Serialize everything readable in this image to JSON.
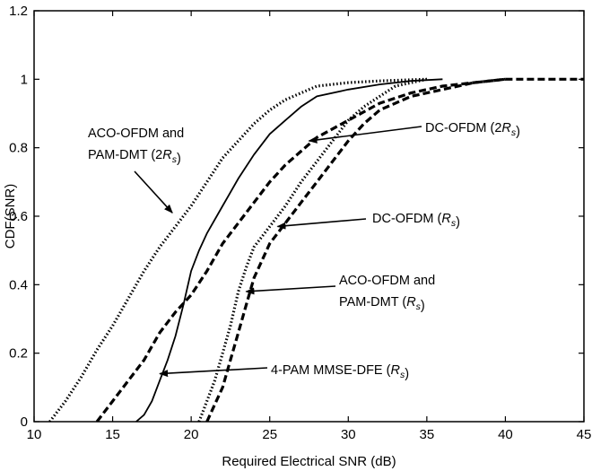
{
  "chart_data": {
    "type": "line",
    "title": "",
    "xlabel": "Required Electrical SNR (dB)",
    "ylabel": "CDF(SNR)",
    "xlim": [
      10,
      45
    ],
    "ylim": [
      0,
      1.2
    ],
    "xticks": [
      "10",
      "15",
      "20",
      "25",
      "30",
      "35",
      "40",
      "45"
    ],
    "yticks": [
      "0",
      "0.2",
      "0.4",
      "0.6",
      "0.8",
      "1",
      "1.2"
    ],
    "grid": false,
    "legend": "none",
    "series": [
      {
        "style": "dotted",
        "x": [
          11,
          12,
          13,
          14,
          15,
          16,
          17,
          18,
          19,
          20,
          21,
          22,
          23,
          24,
          25,
          26,
          27,
          28,
          30,
          32,
          35
        ],
        "y": [
          0,
          0.06,
          0.13,
          0.21,
          0.28,
          0.36,
          0.44,
          0.51,
          0.57,
          0.63,
          0.7,
          0.77,
          0.82,
          0.87,
          0.91,
          0.94,
          0.96,
          0.98,
          0.99,
          0.995,
          1.0
        ]
      },
      {
        "style": "solid",
        "x": [
          16.5,
          17,
          17.5,
          18,
          18.5,
          19,
          19.5,
          20,
          20.5,
          21,
          22,
          23,
          24,
          25,
          26,
          27,
          28,
          30,
          32,
          34,
          36
        ],
        "y": [
          0,
          0.02,
          0.06,
          0.12,
          0.18,
          0.25,
          0.34,
          0.44,
          0.5,
          0.55,
          0.63,
          0.71,
          0.78,
          0.84,
          0.88,
          0.92,
          0.95,
          0.97,
          0.985,
          0.995,
          1.0
        ]
      },
      {
        "style": "dashed",
        "x": [
          14,
          15,
          16,
          17,
          18,
          19,
          20,
          21,
          22,
          23,
          24,
          25,
          26,
          27,
          28,
          30,
          32,
          34,
          36,
          38,
          40
        ],
        "y": [
          0,
          0.06,
          0.12,
          0.18,
          0.26,
          0.32,
          0.37,
          0.44,
          0.52,
          0.58,
          0.64,
          0.7,
          0.75,
          0.79,
          0.83,
          0.88,
          0.93,
          0.96,
          0.98,
          0.99,
          1.0
        ]
      },
      {
        "style": "dotted",
        "x": [
          20.5,
          21,
          21.5,
          22,
          22.5,
          23,
          23.5,
          24,
          25,
          26,
          27,
          28,
          29,
          30,
          31,
          32,
          33,
          35
        ],
        "y": [
          0,
          0.06,
          0.12,
          0.2,
          0.28,
          0.38,
          0.45,
          0.51,
          0.57,
          0.63,
          0.7,
          0.76,
          0.82,
          0.88,
          0.92,
          0.95,
          0.98,
          1.0
        ]
      },
      {
        "style": "dashed",
        "x": [
          21,
          21.5,
          22,
          22.5,
          23,
          23.5,
          24,
          24.5,
          25,
          26,
          27,
          28,
          29,
          30,
          31,
          32,
          34,
          36,
          38,
          40
        ],
        "y": [
          0,
          0.05,
          0.1,
          0.18,
          0.26,
          0.34,
          0.42,
          0.47,
          0.52,
          0.58,
          0.64,
          0.7,
          0.76,
          0.82,
          0.87,
          0.91,
          0.95,
          0.97,
          0.99,
          1.0
        ]
      },
      {
        "style": "dashed",
        "x": [
          40,
          45
        ],
        "y": [
          1.0,
          1.0
        ]
      }
    ],
    "annotations": [
      {
        "lines": [
          "ACO-OFDM and",
          "PAM-DMT (2R_s)"
        ],
        "arrow_to": [
          18.8,
          0.61
        ]
      },
      {
        "lines": [
          "DC-OFDM (2R_s)"
        ],
        "arrow_to": [
          27.5,
          0.82
        ]
      },
      {
        "lines": [
          "DC-OFDM (R_s)"
        ],
        "arrow_to": [
          25.5,
          0.57
        ]
      },
      {
        "lines": [
          "ACO-OFDM and",
          "PAM-DMT (R_s)"
        ],
        "arrow_to": [
          23.5,
          0.38
        ]
      },
      {
        "lines": [
          "4-PAM MMSE-DFE (R_s)"
        ],
        "arrow_to": [
          18.0,
          0.14
        ]
      }
    ]
  }
}
